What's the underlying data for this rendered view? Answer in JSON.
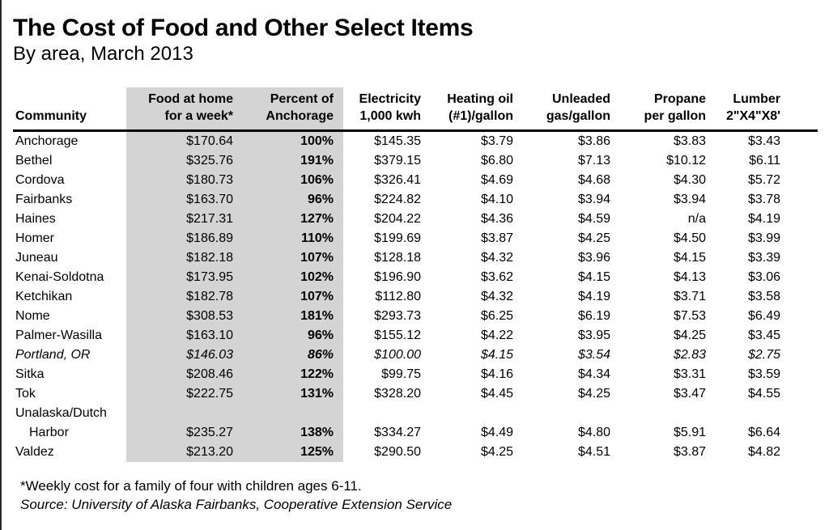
{
  "title": "The Cost of Food and Other Select Items",
  "subtitle": "By area, March 2013",
  "colors": {
    "shaded_band": "#d4d4d4",
    "header_rule": "#000000",
    "left_edge_line": "#2a2a2a"
  },
  "table": {
    "headers": {
      "community": "Community",
      "food": "Food at home\nfor a week*",
      "percent": "Percent of\nAnchorage",
      "electricity": "Electricity\n1,000 kwh",
      "heating_oil": "Heating oil\n(#1)/gallon",
      "unleaded": "Unleaded\ngas/gallon",
      "propane": "Propane\nper gallon",
      "lumber": "Lumber\n2\"X4\"X8'"
    },
    "rows": [
      {
        "community": "Anchorage",
        "food": "$170.64",
        "percent": "100%",
        "electricity": "$145.35",
        "heating_oil": "$3.79",
        "unleaded": "$3.86",
        "propane": "$3.83",
        "lumber": "$3.43",
        "italic": false
      },
      {
        "community": "Bethel",
        "food": "$325.76",
        "percent": "191%",
        "electricity": "$379.15",
        "heating_oil": "$6.80",
        "unleaded": "$7.13",
        "propane": "$10.12",
        "lumber": "$6.11",
        "italic": false
      },
      {
        "community": "Cordova",
        "food": "$180.73",
        "percent": "106%",
        "electricity": "$326.41",
        "heating_oil": "$4.69",
        "unleaded": "$4.68",
        "propane": "$4.30",
        "lumber": "$5.72",
        "italic": false
      },
      {
        "community": "Fairbanks",
        "food": "$163.70",
        "percent": "96%",
        "electricity": "$224.82",
        "heating_oil": "$4.10",
        "unleaded": "$3.94",
        "propane": "$3.94",
        "lumber": "$3.78",
        "italic": false
      },
      {
        "community": "Haines",
        "food": "$217.31",
        "percent": "127%",
        "electricity": "$204.22",
        "heating_oil": "$4.36",
        "unleaded": "$4.59",
        "propane": "n/a",
        "lumber": "$4.19",
        "italic": false
      },
      {
        "community": "Homer",
        "food": "$186.89",
        "percent": "110%",
        "electricity": "$199.69",
        "heating_oil": "$3.87",
        "unleaded": "$4.25",
        "propane": "$4.50",
        "lumber": "$3.99",
        "italic": false
      },
      {
        "community": "Juneau",
        "food": "$182.18",
        "percent": "107%",
        "electricity": "$128.18",
        "heating_oil": "$4.32",
        "unleaded": "$3.96",
        "propane": "$4.15",
        "lumber": "$3.39",
        "italic": false
      },
      {
        "community": "Kenai-Soldotna",
        "food": "$173.95",
        "percent": "102%",
        "electricity": "$196.90",
        "heating_oil": "$3.62",
        "unleaded": "$4.15",
        "propane": "$4.13",
        "lumber": "$3.06",
        "italic": false
      },
      {
        "community": "Ketchikan",
        "food": "$182.78",
        "percent": "107%",
        "electricity": "$112.80",
        "heating_oil": "$4.32",
        "unleaded": "$4.19",
        "propane": "$3.71",
        "lumber": "$3.58",
        "italic": false
      },
      {
        "community": "Nome",
        "food": "$308.53",
        "percent": "181%",
        "electricity": "$293.73",
        "heating_oil": "$6.25",
        "unleaded": "$6.19",
        "propane": "$7.53",
        "lumber": "$6.49",
        "italic": false
      },
      {
        "community": "Palmer-Wasilla",
        "food": "$163.10",
        "percent": "96%",
        "electricity": "$155.12",
        "heating_oil": "$4.22",
        "unleaded": "$3.95",
        "propane": "$4.25",
        "lumber": "$3.45",
        "italic": false
      },
      {
        "community": "Portland, OR",
        "food": "$146.03",
        "percent": "86%",
        "electricity": "$100.00",
        "heating_oil": "$4.15",
        "unleaded": "$3.54",
        "propane": "$2.83",
        "lumber": "$2.75",
        "italic": true
      },
      {
        "community": "Sitka",
        "food": "$208.46",
        "percent": "122%",
        "electricity": "$99.75",
        "heating_oil": "$4.16",
        "unleaded": "$4.34",
        "propane": "$3.31",
        "lumber": "$3.59",
        "italic": false
      },
      {
        "community": "Tok",
        "food": "$222.75",
        "percent": "131%",
        "electricity": "$328.20",
        "heating_oil": "$4.45",
        "unleaded": "$4.25",
        "propane": "$3.47",
        "lumber": "$4.55",
        "italic": false
      },
      {
        "community": "Unalaska/Dutch\nHarbor",
        "food": "$235.27",
        "percent": "138%",
        "electricity": "$334.27",
        "heating_oil": "$4.49",
        "unleaded": "$4.80",
        "propane": "$5.91",
        "lumber": "$6.64",
        "italic": false
      },
      {
        "community": "Valdez",
        "food": "$213.20",
        "percent": "125%",
        "electricity": "$290.50",
        "heating_oil": "$4.25",
        "unleaded": "$4.51",
        "propane": "$3.87",
        "lumber": "$4.82",
        "italic": false
      }
    ]
  },
  "footnotes": {
    "note": "*Weekly cost for a family of four with children ages 6-11.",
    "source": "Source: University of Alaska Fairbanks, Cooperative Extension Service"
  },
  "chart_data": {
    "type": "table",
    "title": "The Cost of Food and Other Select Items",
    "subtitle": "By area, March 2013",
    "columns": [
      "Community",
      "Food at home for a week*",
      "Percent of Anchorage",
      "Electricity 1,000 kwh",
      "Heating oil (#1)/gallon",
      "Unleaded gas/gallon",
      "Propane per gallon",
      "Lumber 2\"X4\"X8'"
    ],
    "highlighted_columns": [
      "Food at home for a week*",
      "Percent of Anchorage"
    ],
    "rows": [
      [
        "Anchorage",
        170.64,
        "100%",
        145.35,
        3.79,
        3.86,
        3.83,
        3.43
      ],
      [
        "Bethel",
        325.76,
        "191%",
        379.15,
        6.8,
        7.13,
        10.12,
        6.11
      ],
      [
        "Cordova",
        180.73,
        "106%",
        326.41,
        4.69,
        4.68,
        4.3,
        5.72
      ],
      [
        "Fairbanks",
        163.7,
        "96%",
        224.82,
        4.1,
        3.94,
        3.94,
        3.78
      ],
      [
        "Haines",
        217.31,
        "127%",
        204.22,
        4.36,
        4.59,
        "n/a",
        4.19
      ],
      [
        "Homer",
        186.89,
        "110%",
        199.69,
        3.87,
        4.25,
        4.5,
        3.99
      ],
      [
        "Juneau",
        182.18,
        "107%",
        128.18,
        4.32,
        3.96,
        4.15,
        3.39
      ],
      [
        "Kenai-Soldotna",
        173.95,
        "102%",
        196.9,
        3.62,
        4.15,
        4.13,
        3.06
      ],
      [
        "Ketchikan",
        182.78,
        "107%",
        112.8,
        4.32,
        4.19,
        3.71,
        3.58
      ],
      [
        "Nome",
        308.53,
        "181%",
        293.73,
        6.25,
        6.19,
        7.53,
        6.49
      ],
      [
        "Palmer-Wasilla",
        163.1,
        "96%",
        155.12,
        4.22,
        3.95,
        4.25,
        3.45
      ],
      [
        "Portland, OR",
        146.03,
        "86%",
        100.0,
        4.15,
        3.54,
        2.83,
        2.75
      ],
      [
        "Sitka",
        208.46,
        "122%",
        99.75,
        4.16,
        4.34,
        3.31,
        3.59
      ],
      [
        "Tok",
        222.75,
        "131%",
        328.2,
        4.45,
        4.25,
        3.47,
        4.55
      ],
      [
        "Unalaska/Dutch Harbor",
        235.27,
        "138%",
        334.27,
        4.49,
        4.8,
        5.91,
        6.64
      ],
      [
        "Valdez",
        213.2,
        "125%",
        290.5,
        4.25,
        4.51,
        3.87,
        4.82
      ]
    ],
    "footnote": "*Weekly cost for a family of four with children ages 6-11.",
    "source": "Source: University of Alaska Fairbanks, Cooperative Extension Service"
  }
}
